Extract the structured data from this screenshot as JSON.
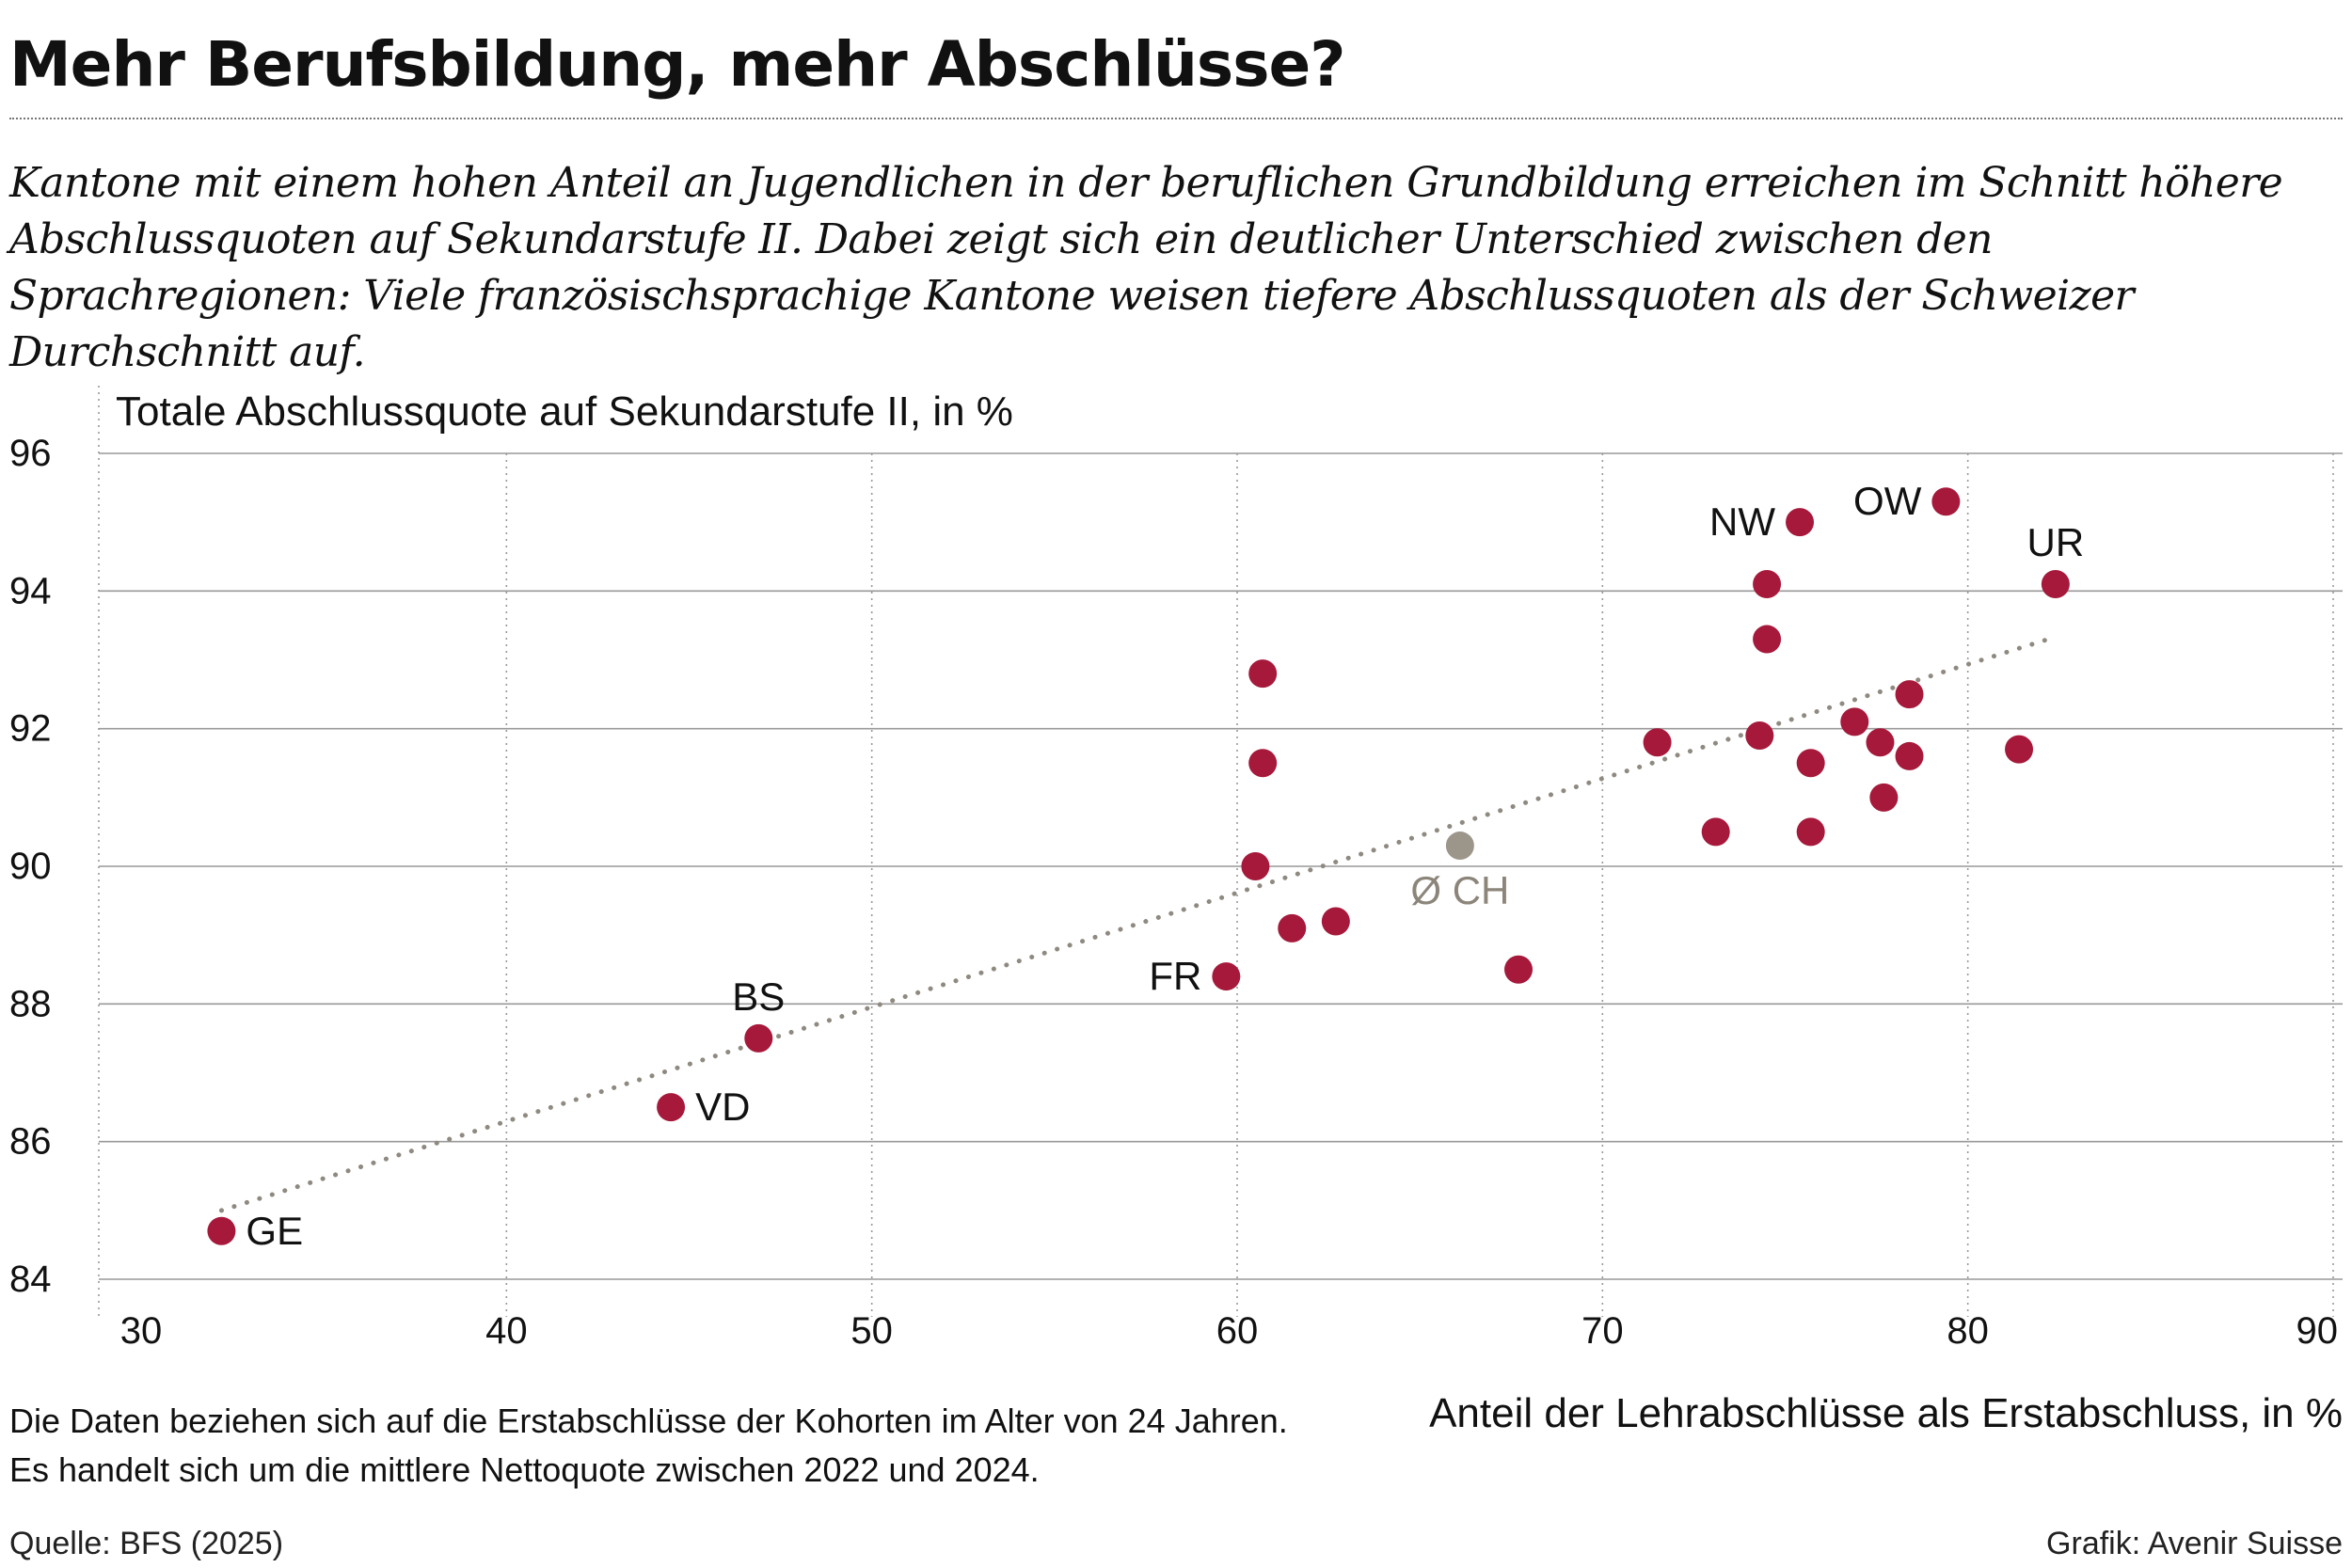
{
  "title": "Mehr Berufsbildung, mehr Abschlüsse?",
  "subtitle": "Kantone mit einem hohen Anteil an Jugendlichen in der beruflichen Grundbildung erreichen im Schnitt höhere Abschlussquoten auf Sekundarstufe II. Dabei zeigt sich ein deutlicher Unterschied zwischen den Sprachregionen: Viele französischsprachige Kantone weisen tiefere Abschlussquoten als der Schweizer Durchschnitt auf.",
  "note": {
    "line1": "Die Daten beziehen sich auf die Erstabschlüsse der Kohorten im Alter von 24 Jahren.",
    "line2": "Es handelt sich um die mittlere Nettoquote zwischen 2022 und 2024."
  },
  "source": "Quelle: BFS (2025)",
  "credit": "Grafik: Avenir Suisse",
  "colors": {
    "canton": "#a6193a",
    "average": "#9c958a",
    "trend": "#8f8a80",
    "grid": "#999999"
  },
  "chart_data": {
    "type": "scatter",
    "xlabel": "Anteil der Lehrabschlüsse als Erstabschluss, in %",
    "ylabel": "Totale Abschlussquote auf Sekundarstufe II, in %",
    "xlim": [
      30,
      90
    ],
    "ylim": [
      84,
      96
    ],
    "xticks": [
      30,
      40,
      50,
      60,
      70,
      80,
      90
    ],
    "yticks": [
      84,
      86,
      88,
      90,
      92,
      94,
      96
    ],
    "grid": "horizontal solid, vertical dotted",
    "points": [
      {
        "x": 32.2,
        "y": 84.7,
        "label": "GE"
      },
      {
        "x": 44.5,
        "y": 86.5,
        "label": "VD"
      },
      {
        "x": 46.9,
        "y": 87.5,
        "label": "BS"
      },
      {
        "x": 59.7,
        "y": 88.4,
        "label": "FR"
      },
      {
        "x": 60.5,
        "y": 90.0,
        "label": ""
      },
      {
        "x": 60.7,
        "y": 92.8,
        "label": ""
      },
      {
        "x": 60.7,
        "y": 91.5,
        "label": ""
      },
      {
        "x": 61.5,
        "y": 89.1,
        "label": ""
      },
      {
        "x": 62.7,
        "y": 89.2,
        "label": ""
      },
      {
        "x": 67.7,
        "y": 88.5,
        "label": ""
      },
      {
        "x": 71.5,
        "y": 91.8,
        "label": ""
      },
      {
        "x": 73.1,
        "y": 90.5,
        "label": ""
      },
      {
        "x": 74.3,
        "y": 91.9,
        "label": ""
      },
      {
        "x": 74.5,
        "y": 94.1,
        "label": ""
      },
      {
        "x": 74.5,
        "y": 93.3,
        "label": ""
      },
      {
        "x": 75.4,
        "y": 95.0,
        "label": "NW"
      },
      {
        "x": 75.7,
        "y": 91.5,
        "label": ""
      },
      {
        "x": 75.7,
        "y": 90.5,
        "label": ""
      },
      {
        "x": 76.9,
        "y": 92.1,
        "label": ""
      },
      {
        "x": 77.6,
        "y": 91.8,
        "label": ""
      },
      {
        "x": 77.7,
        "y": 91.0,
        "label": ""
      },
      {
        "x": 78.4,
        "y": 92.5,
        "label": ""
      },
      {
        "x": 78.4,
        "y": 91.6,
        "label": ""
      },
      {
        "x": 79.4,
        "y": 95.3,
        "label": "OW"
      },
      {
        "x": 81.4,
        "y": 91.7,
        "label": ""
      },
      {
        "x": 82.4,
        "y": 94.1,
        "label": "UR"
      }
    ],
    "average": {
      "x": 66.1,
      "y": 90.3,
      "label": "Ø CH"
    },
    "trendline": {
      "x": [
        32.2,
        82.2
      ],
      "y": [
        85.0,
        93.3
      ]
    }
  }
}
